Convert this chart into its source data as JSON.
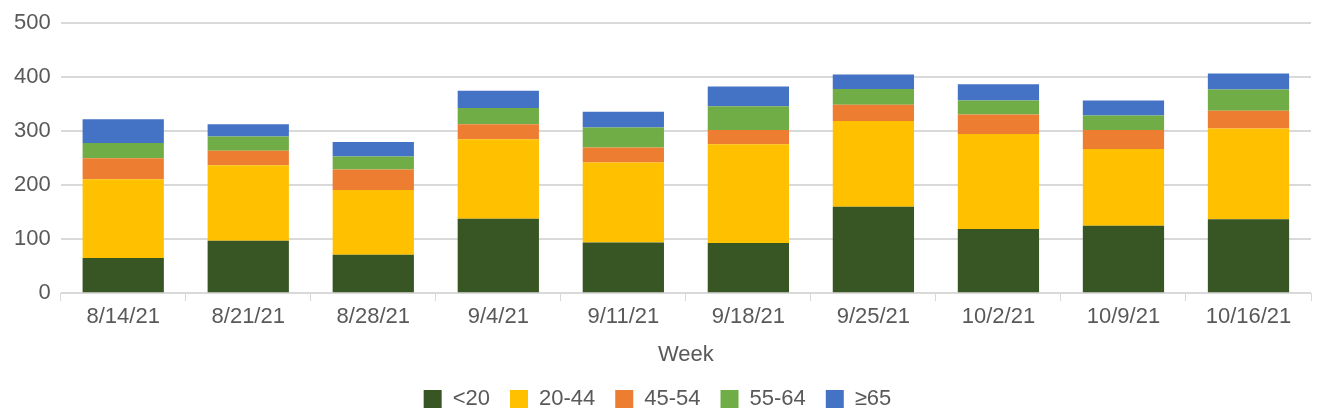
{
  "chart_data": {
    "type": "bar",
    "stacked": true,
    "xlabel": "Week",
    "categories": [
      "8/14/21",
      "8/21/21",
      "8/28/21",
      "9/4/21",
      "9/11/21",
      "9/18/21",
      "9/25/21",
      "10/2/21",
      "10/9/21",
      "10/16/21"
    ],
    "series": [
      {
        "name": "<20",
        "color": "#375623",
        "values": [
          65,
          97,
          71,
          138,
          94,
          93,
          160,
          119,
          125,
          137
        ]
      },
      {
        "name": "20-44",
        "color": "#ffc000",
        "values": [
          146,
          140,
          120,
          147,
          148,
          183,
          159,
          176,
          142,
          168
        ]
      },
      {
        "name": "45-54",
        "color": "#ed7d31",
        "values": [
          39,
          27,
          38,
          28,
          28,
          26,
          30,
          36,
          35,
          33
        ]
      },
      {
        "name": "55-64",
        "color": "#70ad47",
        "values": [
          28,
          26,
          24,
          30,
          37,
          44,
          29,
          26,
          27,
          39
        ]
      },
      {
        "name": "≥65",
        "color": "#4472c4",
        "values": [
          44,
          23,
          27,
          32,
          29,
          37,
          27,
          30,
          28,
          30
        ]
      }
    ],
    "ylim": [
      0,
      500
    ],
    "yticks": [
      0,
      100,
      200,
      300,
      400,
      500
    ],
    "grid": "y",
    "legend": "bottom"
  }
}
